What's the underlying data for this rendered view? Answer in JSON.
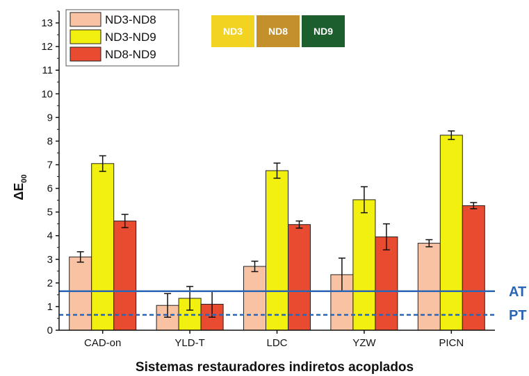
{
  "chart_data": {
    "type": "bar",
    "title": "",
    "xlabel": "Sistemas restauradores indiretos acoplados",
    "ylabel": {
      "main": "ΔE",
      "subscript": "00"
    },
    "ylim": [
      0,
      13.5
    ],
    "yticks": [
      0,
      1,
      2,
      3,
      4,
      5,
      6,
      7,
      8,
      9,
      10,
      11,
      12,
      13
    ],
    "grid": false,
    "legend_position": "top-left",
    "categories": [
      "CAD-on",
      "YLD-T",
      "LDC",
      "YZW",
      "PICN"
    ],
    "series": [
      {
        "name": "ND3-ND8",
        "color": "#f9c3a3",
        "values": [
          3.1,
          1.05,
          2.7,
          2.35,
          3.68
        ],
        "errors": [
          0.22,
          0.5,
          0.22,
          0.7,
          0.15
        ]
      },
      {
        "name": "ND3-ND9",
        "color": "#f2f00e",
        "values": [
          7.05,
          1.35,
          6.75,
          5.52,
          8.25
        ],
        "errors": [
          0.33,
          0.5,
          0.32,
          0.55,
          0.18
        ]
      },
      {
        "name": "ND8-ND9",
        "color": "#e84b2f",
        "values": [
          4.62,
          1.1,
          4.47,
          3.95,
          5.27
        ],
        "errors": [
          0.28,
          0.55,
          0.15,
          0.55,
          0.13
        ]
      }
    ],
    "reference_lines": [
      {
        "label": "AT",
        "value": 1.65,
        "style": "solid",
        "color": "#2a64b4"
      },
      {
        "label": "PT",
        "value": 0.65,
        "style": "dashed",
        "color": "#2a64b4"
      }
    ],
    "shade_swatches": [
      {
        "label": "ND3",
        "color": "#f2d322"
      },
      {
        "label": "ND8",
        "color": "#c3902c"
      },
      {
        "label": "ND9",
        "color": "#1d5e2d"
      }
    ]
  }
}
